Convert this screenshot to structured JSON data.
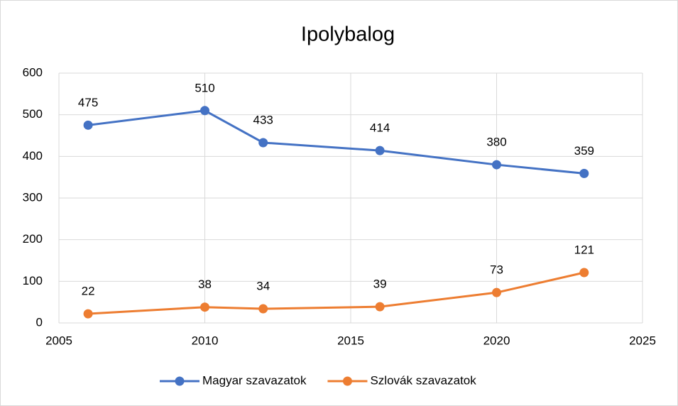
{
  "chart_data": {
    "type": "line",
    "title": "Ipolybalog",
    "x": [
      2006,
      2010,
      2012,
      2016,
      2020,
      2023
    ],
    "series": [
      {
        "name": "Magyar szavazatok",
        "color": "#4472c4",
        "values": [
          475,
          510,
          433,
          414,
          380,
          359
        ]
      },
      {
        "name": "Szlovák szavazatok",
        "color": "#ed7d31",
        "values": [
          22,
          38,
          34,
          39,
          73,
          121
        ]
      }
    ],
    "xlim": [
      2005,
      2025
    ],
    "xticks": [
      2005,
      2010,
      2015,
      2020,
      2025
    ],
    "ylim": [
      0,
      600
    ],
    "yticks": [
      0,
      100,
      200,
      300,
      400,
      500,
      600
    ],
    "grid": true,
    "legend": "bottom"
  }
}
